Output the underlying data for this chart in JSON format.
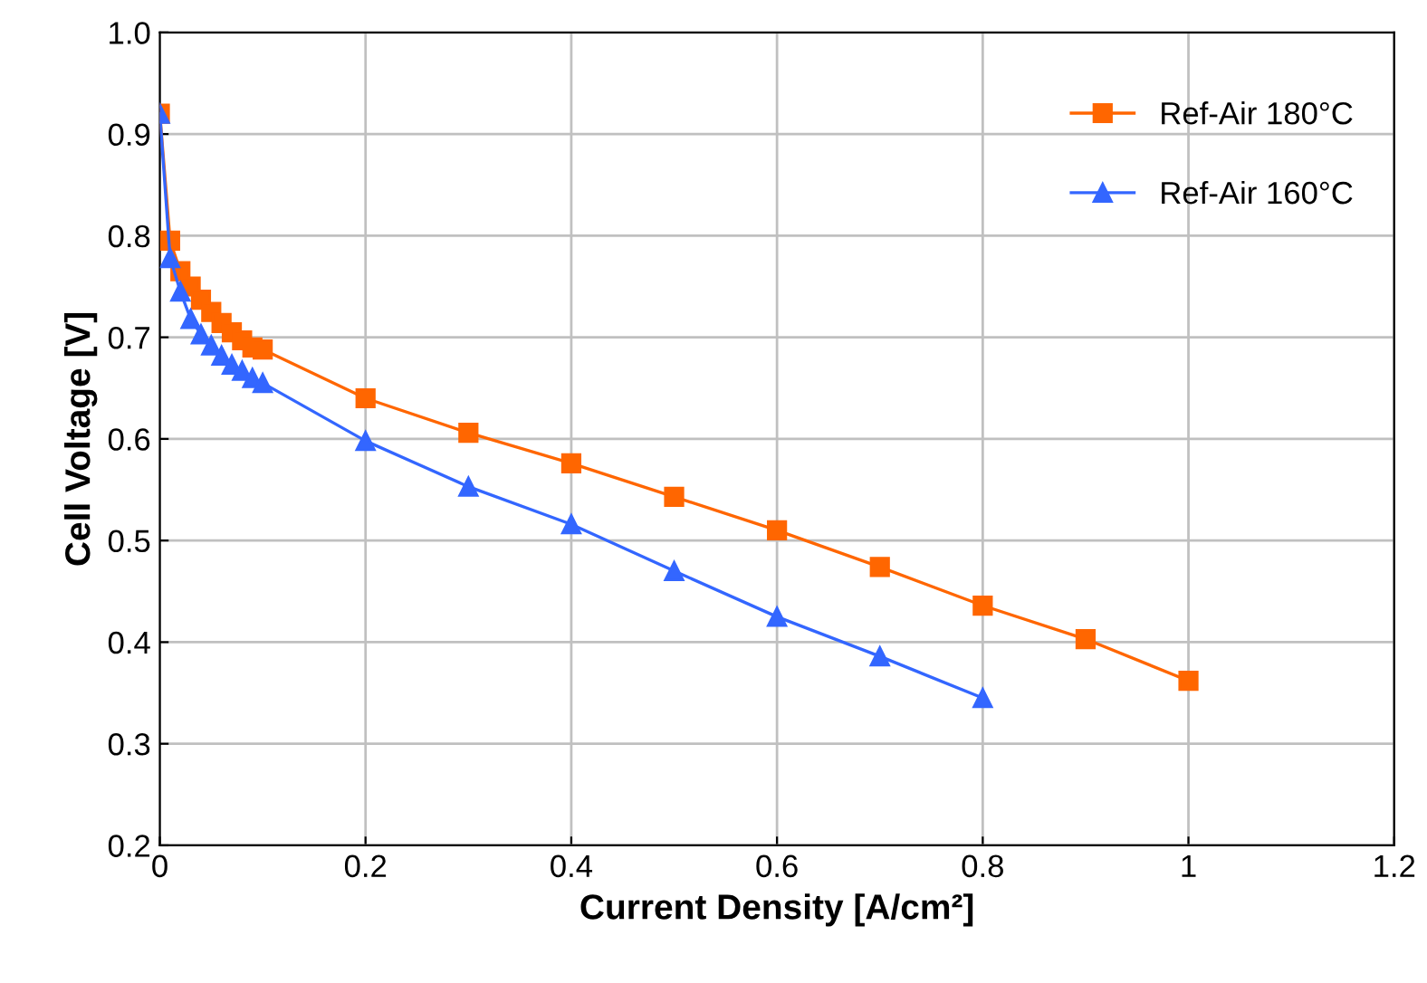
{
  "chart_data": {
    "type": "line",
    "xlabel": "Current Density [A/cm²]",
    "ylabel": "Cell Voltage [V]",
    "xlim": [
      0,
      1.2
    ],
    "xticks": [
      0,
      0.2,
      0.4,
      0.6,
      0.8,
      1,
      1.2
    ],
    "ylim": [
      0.2,
      1.0
    ],
    "yticks": [
      {
        "value": 0.2,
        "label": "0.2"
      },
      {
        "value": 0.3,
        "label": "0.3"
      },
      {
        "value": 0.4,
        "label": "0.4"
      },
      {
        "value": 0.5,
        "label": "0.5"
      },
      {
        "value": 0.6,
        "label": "0.6"
      },
      {
        "value": 0.7,
        "label": "0.7"
      },
      {
        "value": 0.8,
        "label": "0.8"
      },
      {
        "value": 0.9,
        "label": "0.9"
      },
      {
        "value": 1.0,
        "label": "1.0"
      }
    ],
    "grid": true,
    "legend": "top right",
    "line_style": "solid",
    "series": [
      {
        "name": "Ref-Air 180°C",
        "color": "#ff6600",
        "marker": "square",
        "x": [
          0,
          0.01,
          0.02,
          0.03,
          0.04,
          0.05,
          0.06,
          0.07,
          0.08,
          0.09,
          0.1,
          0.2,
          0.3,
          0.4,
          0.5,
          0.6,
          0.7,
          0.8,
          0.9,
          1.0
        ],
        "values": [
          0.92,
          0.795,
          0.765,
          0.75,
          0.737,
          0.725,
          0.714,
          0.705,
          0.697,
          0.69,
          0.688,
          0.64,
          0.606,
          0.576,
          0.543,
          0.51,
          0.474,
          0.436,
          0.403,
          0.362
        ]
      },
      {
        "name": "Ref-Air 160°C",
        "color": "#3366ff",
        "marker": "triangle",
        "x": [
          0,
          0.01,
          0.02,
          0.03,
          0.04,
          0.05,
          0.06,
          0.07,
          0.08,
          0.09,
          0.1,
          0.2,
          0.3,
          0.4,
          0.5,
          0.6,
          0.7,
          0.8
        ],
        "values": [
          0.92,
          0.778,
          0.745,
          0.718,
          0.703,
          0.692,
          0.682,
          0.673,
          0.667,
          0.66,
          0.655,
          0.598,
          0.553,
          0.516,
          0.47,
          0.425,
          0.386,
          0.345
        ]
      }
    ]
  }
}
